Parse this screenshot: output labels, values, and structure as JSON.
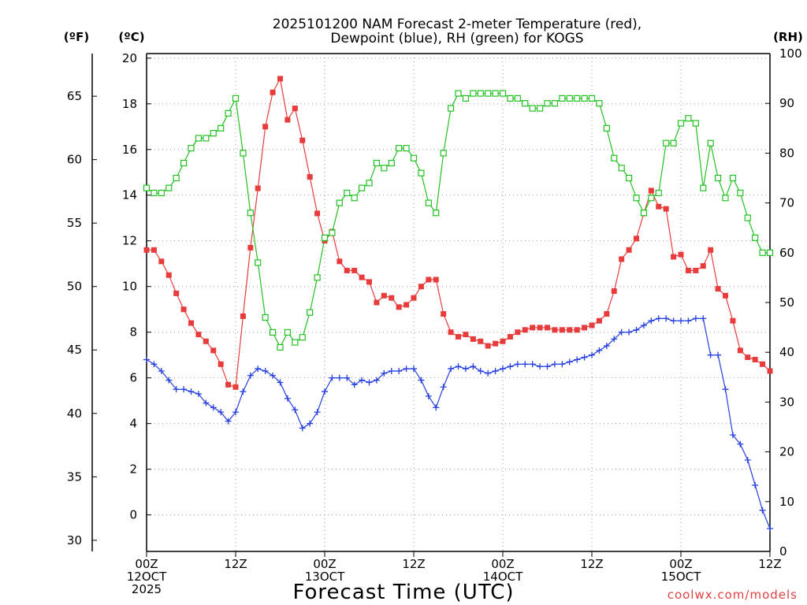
{
  "chart_data": {
    "type": "line",
    "title_line1": "2025101200 NAM Forecast 2-meter Temperature (red),",
    "title_line2": "Dewpoint (blue), RH (green) for KOGS",
    "xlabel": "Forecast Time (UTC)",
    "credit": "coolwx.com/models",
    "units": {
      "f": "(ºF)",
      "c": "(ºC)",
      "rh": "(RH)"
    },
    "x_range_hours": [
      0,
      84
    ],
    "x_ticks": [
      {
        "h": 0,
        "lines": [
          "00Z",
          "12OCT",
          "2025"
        ]
      },
      {
        "h": 12,
        "lines": [
          "12Z"
        ]
      },
      {
        "h": 24,
        "lines": [
          "00Z",
          "13OCT"
        ]
      },
      {
        "h": 36,
        "lines": [
          "12Z"
        ]
      },
      {
        "h": 48,
        "lines": [
          "00Z",
          "14OCT"
        ]
      },
      {
        "h": 60,
        "lines": [
          "12Z"
        ]
      },
      {
        "h": 72,
        "lines": [
          "00Z",
          "15OCT"
        ]
      },
      {
        "h": 84,
        "lines": [
          "12Z"
        ]
      }
    ],
    "axis_c": {
      "range": [
        -1.6,
        20.2
      ],
      "ticks": [
        0,
        2,
        4,
        6,
        8,
        10,
        12,
        14,
        16,
        18,
        20
      ]
    },
    "axis_f": {
      "ticks": [
        30,
        35,
        40,
        45,
        50,
        55,
        60,
        65
      ]
    },
    "axis_rh": {
      "range": [
        0,
        100
      ],
      "ticks": [
        0,
        10,
        20,
        30,
        40,
        50,
        60,
        70,
        80,
        90,
        100
      ]
    },
    "grid": true,
    "series": [
      {
        "name": "Temperature",
        "color": "#e83c3c",
        "marker": "filled-square",
        "axis": "c",
        "x": [
          0,
          1,
          2,
          3,
          4,
          5,
          6,
          7,
          8,
          9,
          10,
          11,
          12,
          13,
          14,
          15,
          16,
          17,
          18,
          19,
          20,
          21,
          22,
          23,
          24,
          25,
          26,
          27,
          28,
          29,
          30,
          31,
          32,
          33,
          34,
          35,
          36,
          37,
          38,
          39,
          40,
          41,
          42,
          43,
          44,
          45,
          46,
          47,
          48,
          49,
          50,
          51,
          52,
          53,
          54,
          55,
          56,
          57,
          58,
          59,
          60,
          61,
          62,
          63,
          64,
          65,
          66,
          67,
          68,
          69,
          70,
          71,
          72,
          73,
          74,
          75,
          76,
          77,
          78,
          79,
          80,
          81,
          82,
          83,
          84
        ],
        "y": [
          11.6,
          11.6,
          11.1,
          10.5,
          9.7,
          9.0,
          8.4,
          7.9,
          7.6,
          7.2,
          6.6,
          5.7,
          5.6,
          8.7,
          11.7,
          14.3,
          17.0,
          18.5,
          19.1,
          17.3,
          17.8,
          16.4,
          14.8,
          13.2,
          12.0,
          12.4,
          11.1,
          10.7,
          10.7,
          10.4,
          10.2,
          9.3,
          9.6,
          9.5,
          9.1,
          9.2,
          9.5,
          10.0,
          10.3,
          10.3,
          8.8,
          8.0,
          7.8,
          7.9,
          7.7,
          7.6,
          7.4,
          7.5,
          7.6,
          7.8,
          8.0,
          8.1,
          8.2,
          8.2,
          8.2,
          8.1,
          8.1,
          8.1,
          8.1,
          8.2,
          8.3,
          8.5,
          8.8,
          9.8,
          11.2,
          11.6,
          12.1,
          13.2,
          14.2,
          13.5,
          13.4,
          11.3,
          11.4,
          10.7,
          10.7,
          10.9,
          11.6,
          9.9,
          9.6,
          8.5,
          7.2,
          6.9,
          6.8,
          6.6,
          6.3
        ]
      },
      {
        "name": "Dewpoint",
        "color": "#2640e0",
        "marker": "plus",
        "axis": "c",
        "x": [
          0,
          1,
          2,
          3,
          4,
          5,
          6,
          7,
          8,
          9,
          10,
          11,
          12,
          13,
          14,
          15,
          16,
          17,
          18,
          19,
          20,
          21,
          22,
          23,
          24,
          25,
          26,
          27,
          28,
          29,
          30,
          31,
          32,
          33,
          34,
          35,
          36,
          37,
          38,
          39,
          40,
          41,
          42,
          43,
          44,
          45,
          46,
          47,
          48,
          49,
          50,
          51,
          52,
          53,
          54,
          55,
          56,
          57,
          58,
          59,
          60,
          61,
          62,
          63,
          64,
          65,
          66,
          67,
          68,
          69,
          70,
          71,
          72,
          73,
          74,
          75,
          76,
          77,
          78,
          79,
          80,
          81,
          82,
          83,
          84
        ],
        "y": [
          6.8,
          6.6,
          6.3,
          5.9,
          5.5,
          5.5,
          5.4,
          5.3,
          4.9,
          4.7,
          4.5,
          4.1,
          4.5,
          5.4,
          6.1,
          6.4,
          6.3,
          6.1,
          5.8,
          5.1,
          4.6,
          3.8,
          4.0,
          4.5,
          5.4,
          6.0,
          6.0,
          6.0,
          5.7,
          5.9,
          5.8,
          5.9,
          6.2,
          6.3,
          6.3,
          6.4,
          6.4,
          5.9,
          5.2,
          4.7,
          5.6,
          6.4,
          6.5,
          6.4,
          6.5,
          6.3,
          6.2,
          6.3,
          6.4,
          6.5,
          6.6,
          6.6,
          6.6,
          6.5,
          6.5,
          6.6,
          6.6,
          6.7,
          6.8,
          6.9,
          7.0,
          7.2,
          7.4,
          7.7,
          8.0,
          8.0,
          8.1,
          8.3,
          8.5,
          8.6,
          8.6,
          8.5,
          8.5,
          8.5,
          8.6,
          8.6,
          7.0,
          7.0,
          5.5,
          3.5,
          3.1,
          2.4,
          1.3,
          0.2,
          -0.6
        ]
      },
      {
        "name": "RH",
        "color": "#22c022",
        "marker": "open-square",
        "axis": "rh",
        "x": [
          0,
          1,
          2,
          3,
          4,
          5,
          6,
          7,
          8,
          9,
          10,
          11,
          12,
          13,
          14,
          15,
          16,
          17,
          18,
          19,
          20,
          21,
          22,
          23,
          24,
          25,
          26,
          27,
          28,
          29,
          30,
          31,
          32,
          33,
          34,
          35,
          36,
          37,
          38,
          39,
          40,
          41,
          42,
          43,
          44,
          45,
          46,
          47,
          48,
          49,
          50,
          51,
          52,
          53,
          54,
          55,
          56,
          57,
          58,
          59,
          60,
          61,
          62,
          63,
          64,
          65,
          66,
          67,
          68,
          69,
          70,
          71,
          72,
          73,
          74,
          75,
          76,
          77,
          78,
          79,
          80,
          81,
          82,
          83,
          84
        ],
        "y": [
          73,
          72,
          72,
          73,
          75,
          78,
          81,
          83,
          83,
          84,
          85,
          88,
          91,
          80,
          68,
          58,
          47,
          44,
          41,
          44,
          42,
          43,
          48,
          55,
          63,
          64,
          70,
          72,
          71,
          73,
          74,
          78,
          77,
          78,
          81,
          81,
          79,
          76,
          70,
          68,
          80,
          89,
          92,
          91,
          92,
          92,
          92,
          92,
          92,
          91,
          91,
          90,
          89,
          89,
          90,
          90,
          91,
          91,
          91,
          91,
          91,
          90,
          85,
          79,
          77,
          75,
          71,
          68,
          71,
          72,
          82,
          82,
          86,
          87,
          86,
          73,
          82,
          75,
          71,
          75,
          72,
          67,
          63,
          60,
          60
        ]
      }
    ]
  }
}
